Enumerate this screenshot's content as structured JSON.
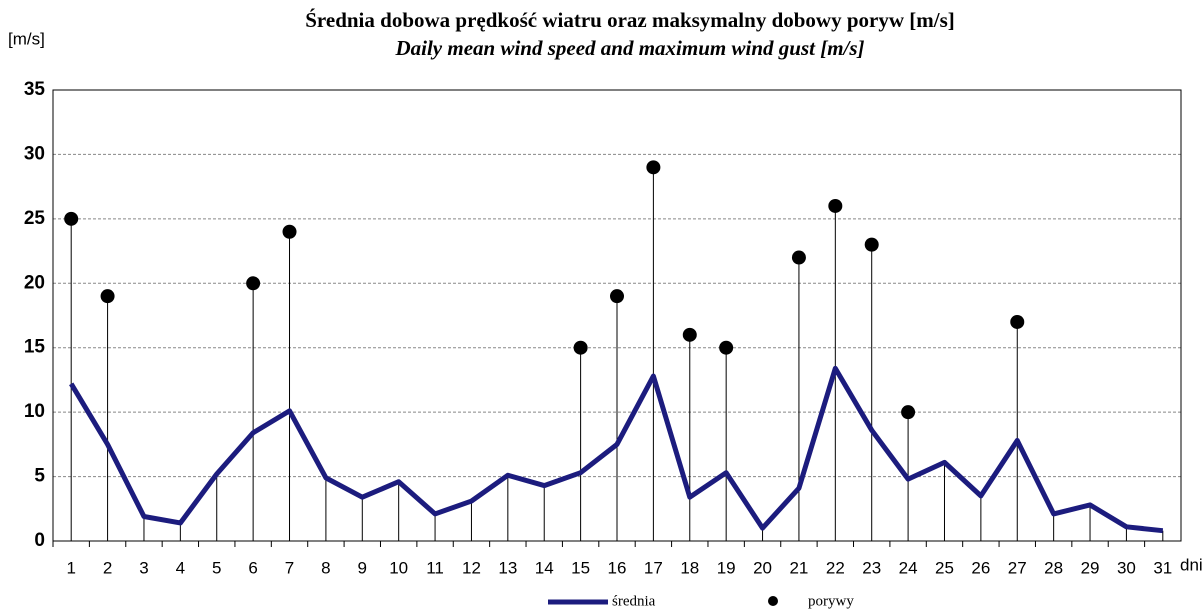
{
  "chart_data": {
    "type": "line",
    "title": "Średnia dobowa prędkość wiatru oraz maksymalny dobowy poryw [m/s]",
    "subtitle": "Daily mean wind speed and maximum wind gust [m/s]",
    "y_label": "[m/s]",
    "x_label": "dni",
    "categories": [
      "1",
      "2",
      "3",
      "4",
      "5",
      "6",
      "7",
      "8",
      "9",
      "10",
      "11",
      "12",
      "13",
      "14",
      "15",
      "16",
      "17",
      "18",
      "19",
      "20",
      "21",
      "22",
      "23",
      "24",
      "25",
      "26",
      "27",
      "28",
      "29",
      "30",
      "31"
    ],
    "series": [
      {
        "name": "średnia",
        "color": "#1c1c7e",
        "style": "line",
        "values": [
          12.2,
          7.5,
          1.9,
          1.4,
          5.2,
          8.4,
          10.1,
          4.9,
          3.4,
          4.6,
          2.1,
          3.1,
          5.1,
          4.3,
          5.3,
          7.5,
          12.8,
          3.4,
          5.3,
          1.0,
          4.1,
          13.4,
          8.6,
          4.8,
          6.1,
          3.5,
          7.8,
          2.1,
          2.8,
          1.1,
          0.8
        ]
      },
      {
        "name": "porywy",
        "color": "#000000",
        "style": "dots",
        "values": [
          25,
          19,
          null,
          null,
          null,
          20,
          24,
          null,
          null,
          null,
          null,
          null,
          null,
          null,
          15,
          19,
          29,
          16,
          15,
          null,
          22,
          26,
          23,
          10,
          null,
          null,
          17,
          null,
          null,
          null,
          null
        ]
      }
    ],
    "ylim": [
      0,
      35
    ],
    "yticks": [
      0,
      5,
      10,
      15,
      20,
      25,
      30,
      35
    ],
    "grid": true
  }
}
